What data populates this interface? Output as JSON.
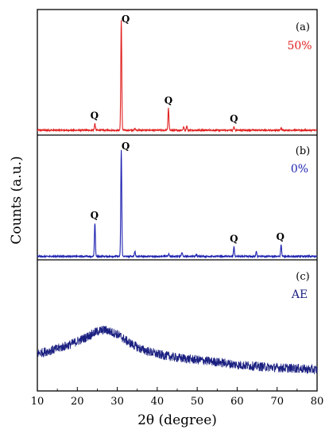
{
  "chart_data": {
    "type": "line",
    "xlabel": "2θ (degree)",
    "ylabel": "Counts (a.u.)",
    "xlim": [
      10,
      80
    ],
    "x_ticks": [
      10,
      20,
      30,
      40,
      50,
      60,
      70,
      80
    ],
    "grid": false,
    "panels": [
      {
        "letter": "(a)",
        "name": "50%",
        "color": "#e0201f",
        "baseline": 0.03,
        "peaks": [
          {
            "x": 24.4,
            "y": 0.06
          },
          {
            "x": 31.0,
            "y": 1.0
          },
          {
            "x": 34.4,
            "y": 0.02
          },
          {
            "x": 42.8,
            "y": 0.2
          },
          {
            "x": 46.6,
            "y": 0.03
          },
          {
            "x": 47.4,
            "y": 0.04
          },
          {
            "x": 59.2,
            "y": 0.03
          },
          {
            "x": 71.0,
            "y": 0.02
          }
        ],
        "peak_labels": [
          {
            "x": 24.3,
            "text": "Q"
          },
          {
            "x": 32.1,
            "text": "Q"
          },
          {
            "x": 42.8,
            "text": "Q"
          },
          {
            "x": 59.2,
            "text": "Q"
          }
        ]
      },
      {
        "letter": "(b)",
        "name": "0%",
        "color": "#1e22b0",
        "baseline": 0.01,
        "peaks": [
          {
            "x": 24.4,
            "y": 0.31
          },
          {
            "x": 31.0,
            "y": 1.0
          },
          {
            "x": 34.4,
            "y": 0.05
          },
          {
            "x": 42.9,
            "y": 0.02
          },
          {
            "x": 46.2,
            "y": 0.04
          },
          {
            "x": 49.8,
            "y": 0.02
          },
          {
            "x": 59.2,
            "y": 0.09
          },
          {
            "x": 64.8,
            "y": 0.05
          },
          {
            "x": 71.0,
            "y": 0.11
          }
        ],
        "peak_labels": [
          {
            "x": 24.3,
            "text": "Q"
          },
          {
            "x": 32.1,
            "text": "Q"
          },
          {
            "x": 59.2,
            "text": "Q"
          },
          {
            "x": 70.8,
            "text": "Q"
          }
        ]
      },
      {
        "letter": "(c)",
        "name": "AE",
        "color": "#1a1f80",
        "profile": [
          {
            "x": 10,
            "y": 0.28
          },
          {
            "x": 14,
            "y": 0.33
          },
          {
            "x": 18,
            "y": 0.4
          },
          {
            "x": 22,
            "y": 0.5
          },
          {
            "x": 25,
            "y": 0.59
          },
          {
            "x": 27,
            "y": 0.61
          },
          {
            "x": 30,
            "y": 0.55
          },
          {
            "x": 33,
            "y": 0.43
          },
          {
            "x": 36,
            "y": 0.34
          },
          {
            "x": 40,
            "y": 0.27
          },
          {
            "x": 45,
            "y": 0.22
          },
          {
            "x": 50,
            "y": 0.19
          },
          {
            "x": 55,
            "y": 0.16
          },
          {
            "x": 60,
            "y": 0.12
          },
          {
            "x": 65,
            "y": 0.1
          },
          {
            "x": 70,
            "y": 0.08
          },
          {
            "x": 75,
            "y": 0.07
          },
          {
            "x": 80,
            "y": 0.05
          }
        ],
        "peak_labels": []
      }
    ]
  }
}
